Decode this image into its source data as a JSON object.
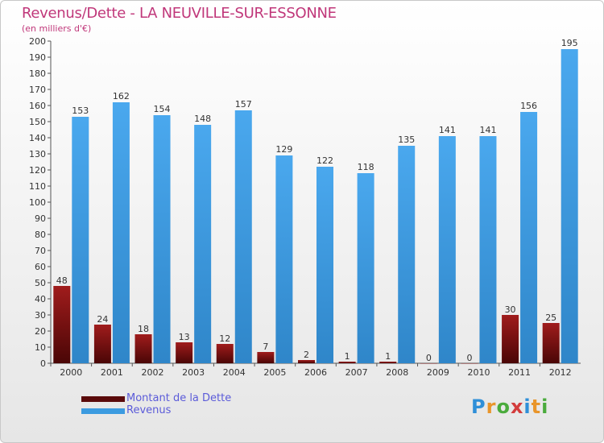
{
  "chart_data": {
    "type": "bar",
    "title": "Revenus/Dette - LA NEUVILLE-SUR-ESSONNE",
    "subtitle": "(en milliers d'€)",
    "categories": [
      "2000",
      "2001",
      "2002",
      "2003",
      "2004",
      "2005",
      "2006",
      "2007",
      "2008",
      "2009",
      "2010",
      "2011",
      "2012"
    ],
    "series": [
      {
        "name": "Montant de la Dette",
        "color": "#7a1010",
        "values": [
          48,
          24,
          18,
          13,
          12,
          7,
          2,
          1,
          1,
          0,
          0,
          30,
          25
        ]
      },
      {
        "name": "Revenus",
        "color": "#3c9be0",
        "values": [
          153,
          162,
          154,
          148,
          157,
          129,
          122,
          118,
          135,
          141,
          141,
          156,
          195
        ]
      }
    ],
    "ylim": [
      0,
      200
    ],
    "ytick_step": 10,
    "grid": false,
    "legend_position": "bottom-left"
  },
  "legend": {
    "debt_label": "Montant de la Dette",
    "revenue_label": "Revenus"
  },
  "logo": {
    "letters": [
      "P",
      "r",
      "o",
      "x",
      "i",
      "t",
      "i"
    ],
    "colors": [
      "#2f8fd8",
      "#e9952a",
      "#4aab3c",
      "#d33c3c",
      "#2f8fd8",
      "#e9952a",
      "#4aab3c"
    ]
  }
}
